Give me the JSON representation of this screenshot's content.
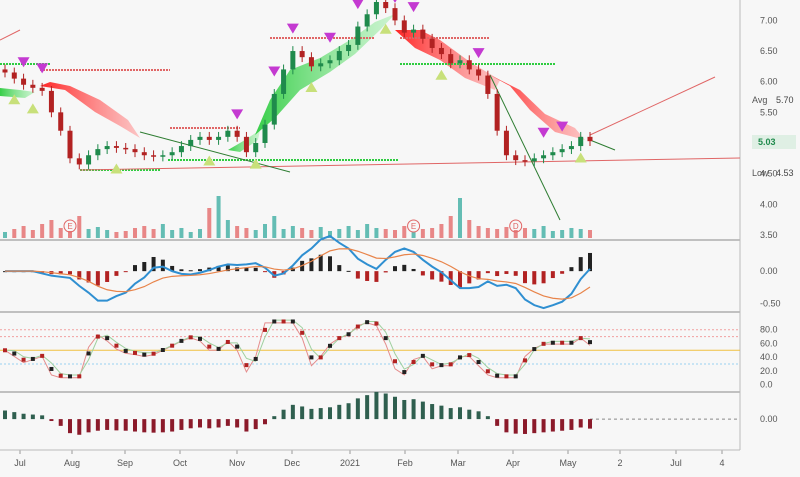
{
  "chart_data": {
    "type": "candlestick",
    "price_panel": {
      "y_ticks": [
        "7.00",
        "6.50",
        "6.00",
        "5.50",
        "5.00",
        "4.50",
        "4.00",
        "3.50"
      ],
      "ylim": [
        3.45,
        7.3
      ],
      "avg_label": "Avg",
      "avg_value": "5.70",
      "last_value": "5.03",
      "low_label": "Low",
      "low_value": "4.53",
      "earnings_markers": [
        {
          "label": "E",
          "date_index": 7
        },
        {
          "label": "E",
          "date_index": 44
        },
        {
          "label": "D",
          "date_index": 55
        }
      ],
      "close": [
        6.15,
        6.05,
        5.95,
        5.9,
        5.85,
        5.5,
        5.2,
        4.75,
        4.65,
        4.8,
        4.9,
        4.95,
        4.92,
        4.9,
        4.85,
        4.8,
        4.78,
        4.8,
        4.85,
        4.95,
        5.05,
        5.1,
        5.05,
        5.1,
        5.2,
        5.1,
        4.85,
        5.0,
        5.3,
        5.8,
        6.2,
        6.5,
        6.4,
        6.25,
        6.3,
        6.35,
        6.5,
        6.6,
        6.9,
        7.1,
        7.3,
        7.2,
        7.0,
        6.8,
        6.85,
        6.7,
        6.55,
        6.45,
        6.3,
        6.35,
        6.2,
        6.1,
        5.8,
        5.2,
        4.8,
        4.72,
        4.7,
        4.75,
        4.8,
        4.85,
        4.9,
        4.95,
        5.1,
        5.03
      ]
    },
    "macd_panel": {
      "y_ticks": [
        "0.00",
        "-0.50"
      ],
      "ylim": [
        -0.6,
        0.45
      ]
    },
    "rsi_panel": {
      "y_ticks": [
        "80.0",
        "60.0",
        "40.0",
        "20.0",
        "0.0"
      ],
      "ylim": [
        -5,
        100
      ],
      "levels": [
        80,
        70,
        50,
        30
      ]
    },
    "momentum_panel": {
      "y_ticks": [
        "0.00"
      ],
      "ylim": [
        -0.5,
        0.4
      ]
    },
    "x_tick_labels": [
      "Jul",
      "Aug",
      "Sep",
      "Oct",
      "Nov",
      "Dec",
      "2021",
      "Feb",
      "Mar",
      "Apr",
      "May",
      "2",
      "Jul",
      "4"
    ],
    "colors": {
      "up": "#1f8a4c",
      "down": "#b22222",
      "volume_up": "#4ab3a8",
      "volume_down": "#e57373",
      "macd_line": "#2f8fd1",
      "signal_line": "#e8844a",
      "cloud_green": "#2ecc40",
      "cloud_red": "#ff1a1a",
      "triangle_up": "#c8e07a",
      "triangle_down": "#c43ad1"
    }
  }
}
